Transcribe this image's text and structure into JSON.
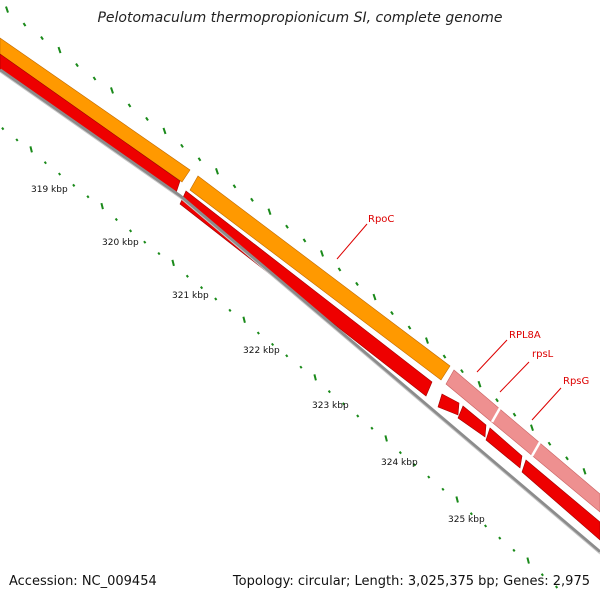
{
  "title": "Pelotomaculum thermopropionicum SI, complete genome",
  "accession": "Accession: NC_009454",
  "summary": "Topology: circular; Length: 3,025,375 bp; Genes: 2,975",
  "colors": {
    "backbone": "#8c8c8c",
    "cds_orange": "#ff9900",
    "cds_red": "#ee0000",
    "cds_pink": "#ee9090",
    "gene_label": "#dd0000",
    "gc_tick": "#1a8a1a"
  },
  "scale_labels": [
    "319 kbp",
    "320 kbp",
    "321 kbp",
    "322 kbp",
    "323 kbp",
    "324 kbp",
    "325 kbp"
  ],
  "genes": [
    {
      "name": "RpoC"
    },
    {
      "name": "RPL8A"
    },
    {
      "name": "rpsL"
    },
    {
      "name": "RpsG"
    }
  ]
}
